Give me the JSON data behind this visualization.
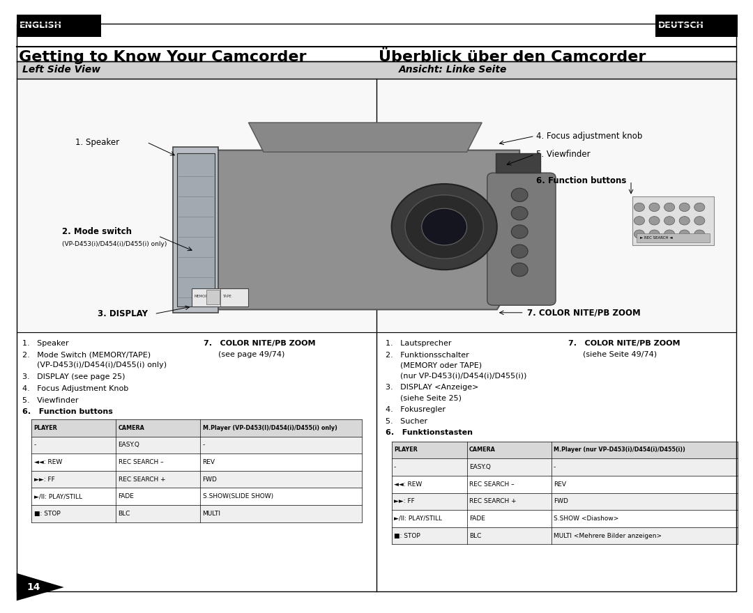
{
  "bg_color": "#ffffff",
  "english_badge_text": "ENGLISH",
  "deutsch_badge_text": "DEUTSCH",
  "title_left": "Getting to Know Your Camcorder",
  "title_right": "Überblick über den Camcorder",
  "section_left": "Left Side View",
  "section_right": "Ansicht: Linke Seite",
  "table_left_headers": [
    "PLAYER",
    "CAMERA",
    "M.Player (VP-D453(I)/D454(i)/D455(i) only)"
  ],
  "table_left_rows": [
    [
      "-",
      "EASY.Q",
      "-"
    ],
    [
      "◄◄: REW",
      "REC SEARCH –",
      "REV"
    ],
    [
      "►►: FF",
      "REC SEARCH +",
      "FWD"
    ],
    [
      "►/II: PLAY/STILL",
      "FADE",
      "S.SHOW(SLIDE SHOW)"
    ],
    [
      "■: STOP",
      "BLC",
      "MULTI"
    ]
  ],
  "table_right_headers": [
    "PLAYER",
    "CAMERA",
    "M.Player (nur VP-D453(i)/D454(i)/D455(i))"
  ],
  "table_right_rows": [
    [
      "-",
      "EASY.Q",
      "-"
    ],
    [
      "◄◄: REW",
      "REC SEARCH –",
      "REV"
    ],
    [
      "►►: FF",
      "REC SEARCH +",
      "FWD"
    ],
    [
      "►/II: PLAY/STILL",
      "FADE",
      "S.SHOW <Diashow>"
    ],
    [
      "■: STOP",
      "BLC",
      "MULTI <Mehrere Bilder anzeigen>"
    ]
  ],
  "page_number": "14"
}
